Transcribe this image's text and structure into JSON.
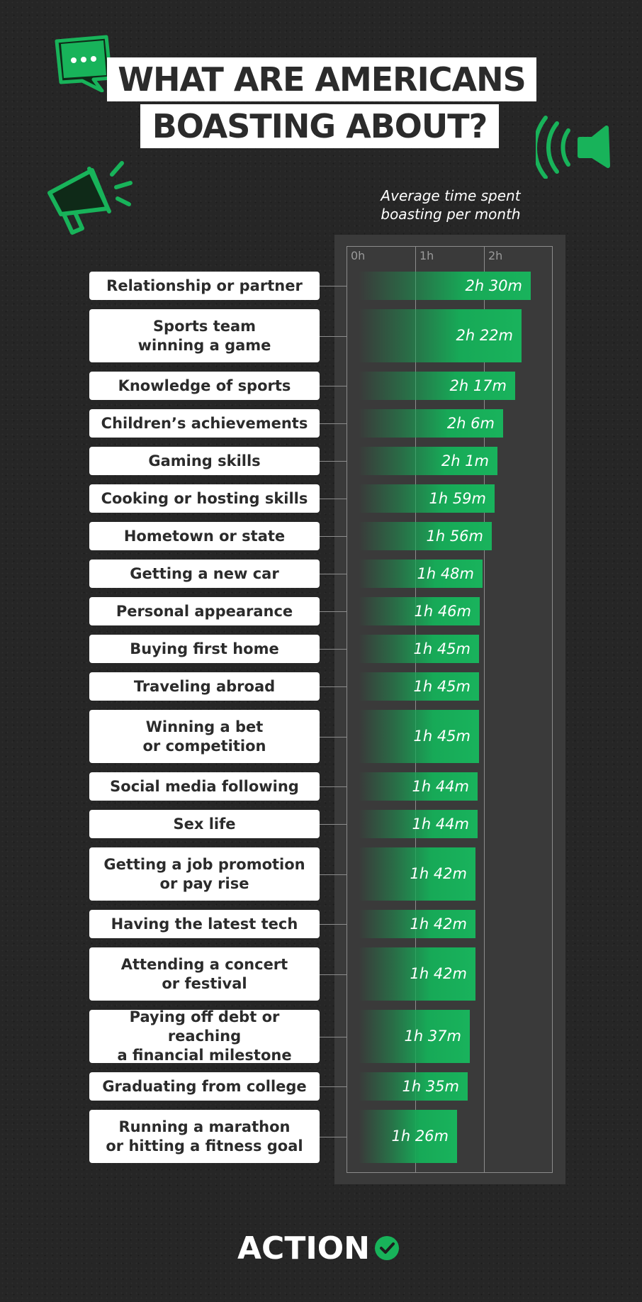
{
  "title_lines": [
    "WHAT ARE AMERICANS",
    "BOASTING ABOUT?"
  ],
  "subtitle": "Average time spent\nboasting per month",
  "brand": {
    "name": "ACTION",
    "accent": "#18b35a"
  },
  "colors": {
    "background": "#262626",
    "bar": "#18b35a",
    "panel": "#3a3a3a"
  },
  "icons": [
    "chat-bubble-icon",
    "megaphone-icon",
    "speaker-icon",
    "check-circle-icon"
  ],
  "chart_data": {
    "type": "bar",
    "orientation": "horizontal",
    "unit": "minutes",
    "x_ticks": [
      "0h",
      "1h",
      "2h"
    ],
    "xlim": [
      0,
      180
    ],
    "grid": true,
    "categories": [
      "Relationship or partner",
      "Sports team\nwinning a game",
      "Knowledge of sports",
      "Children’s achievements",
      "Gaming skills",
      "Cooking or hosting skills",
      "Hometown or state",
      "Getting a new car",
      "Personal appearance",
      "Buying first home",
      "Traveling abroad",
      "Winning a bet\nor competition",
      "Social media following",
      "Sex life",
      "Getting a job promotion\nor pay rise",
      "Having the latest tech",
      "Attending a concert\nor festival",
      "Paying off debt or reaching\na financial milestone",
      "Graduating from college",
      "Running a marathon\nor hitting a fitness goal"
    ],
    "values": [
      150,
      142,
      137,
      126,
      121,
      119,
      116,
      108,
      106,
      105,
      105,
      105,
      104,
      104,
      102,
      102,
      102,
      97,
      95,
      86
    ],
    "value_labels": [
      "2h 30m",
      "2h 22m",
      "2h 17m",
      "2h 6m",
      "2h 1m",
      "1h 59m",
      "1h 56m",
      "1h 48m",
      "1h 46m",
      "1h 45m",
      "1h 45m",
      "1h 45m",
      "1h 44m",
      "1h 44m",
      "1h 42m",
      "1h 42m",
      "1h 42m",
      "1h 37m",
      "1h 35m",
      "1h 26m"
    ]
  }
}
